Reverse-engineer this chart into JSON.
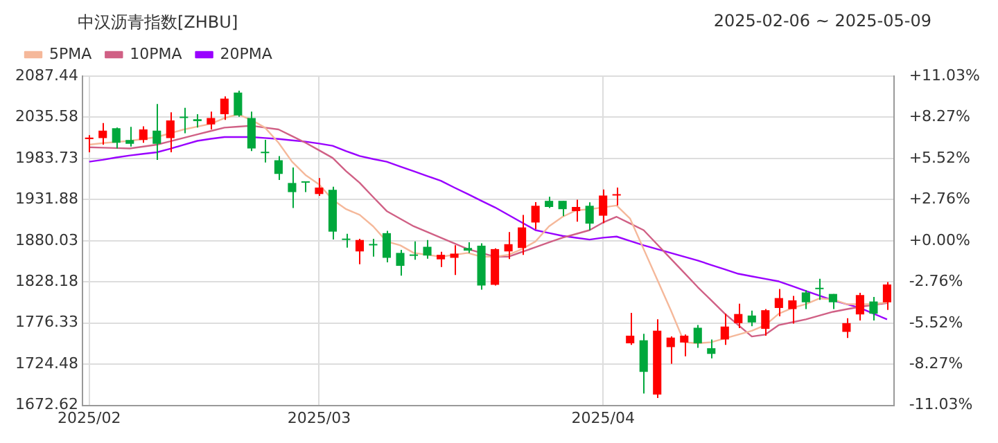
{
  "chart_data": {
    "type": "candlestick",
    "title": "中汉沥青指数[ZHBU]",
    "subtitle": "2025-02-06 ~ 2025-05-09",
    "categories": [
      "2025/02",
      null,
      null,
      null,
      null,
      null,
      null,
      null,
      null,
      null,
      null,
      null,
      null,
      null,
      null,
      null,
      null,
      "2025/03",
      null,
      null,
      null,
      null,
      null,
      null,
      null,
      null,
      null,
      null,
      null,
      null,
      null,
      null,
      null,
      null,
      null,
      null,
      null,
      null,
      "2025/04",
      null,
      null,
      null,
      null,
      null,
      null,
      null,
      null,
      null,
      null,
      null,
      null,
      null,
      null,
      null,
      null,
      null,
      null,
      null,
      null,
      null
    ],
    "ohlc": [
      [
        2008,
        2013.1,
        1991.5,
        2010
      ],
      [
        2009.3,
        2028.4,
        2001.1,
        2018.8
      ],
      [
        2021.7,
        2022.6,
        1996.3,
        2003.5
      ],
      [
        2006.9,
        2023.6,
        1998.7,
        2002.1
      ],
      [
        2006.9,
        2024.1,
        2003.5,
        2020.3
      ],
      [
        2018.8,
        2052.3,
        1982,
        2002.1
      ],
      [
        2009.3,
        2041.8,
        1991.5,
        2031.7
      ],
      [
        2035.6,
        2047.5,
        2015.5,
        2034.6
      ],
      [
        2033.2,
        2039.4,
        2022.6,
        2030.8
      ],
      [
        2026.5,
        2042.8,
        2020.3,
        2034.6
      ],
      [
        2039.4,
        2061.9,
        2032.2,
        2059
      ],
      [
        2066.7,
        2069.1,
        2036.1,
        2037.9
      ],
      [
        2034.6,
        2042.8,
        1993,
        1996.3
      ],
      [
        1991.5,
        2007.3,
        1978.6,
        1990.5
      ],
      [
        1981.5,
        1986.8,
        1956.6,
        1964.3
      ],
      [
        1952.8,
        1972.4,
        1921.2,
        1941.3
      ],
      [
        1953.7,
        1954.2,
        1941.3,
        1953.2
      ],
      [
        1938.9,
        1959,
        1936.5,
        1947
      ],
      [
        1944.2,
        1948,
        1881.5,
        1891.5
      ],
      [
        1881.5,
        1888.7,
        1871.4,
        1881
      ],
      [
        1866.6,
        1882.4,
        1850.4,
        1881
      ],
      [
        1874.5,
        1882.4,
        1860,
        1874.2
      ],
      [
        1889.6,
        1892.5,
        1852.8,
        1858.5
      ],
      [
        1864.7,
        1868.5,
        1836,
        1848.4
      ],
      [
        1861.5,
        1879.1,
        1856.1,
        1861
      ],
      [
        1872.4,
        1881,
        1857.5,
        1861.4
      ],
      [
        1856.6,
        1866.1,
        1847,
        1862.3
      ],
      [
        1858.5,
        1874.3,
        1837,
        1863.8
      ],
      [
        1870.9,
        1878.1,
        1864.7,
        1867.6
      ],
      [
        1873.8,
        1876.7,
        1818.3,
        1823.6
      ],
      [
        1824.5,
        1870.5,
        1823.6,
        1869.5
      ],
      [
        1866.6,
        1891,
        1857,
        1875.7
      ],
      [
        1870.9,
        1912.6,
        1862.3,
        1896.8
      ],
      [
        1903,
        1928.8,
        1894.4,
        1924.1
      ],
      [
        1930.3,
        1935.5,
        1921.2,
        1922.6
      ],
      [
        1930.3,
        1930.3,
        1911.1,
        1919.8
      ],
      [
        1917.4,
        1931.7,
        1904,
        1922.6
      ],
      [
        1924.1,
        1928.4,
        1893.4,
        1901.6
      ],
      [
        1911.6,
        1944.6,
        1902,
        1937
      ],
      [
        1937,
        1947,
        1924.5,
        1938.5
      ],
      [
        1750.8,
        1789.1,
        1748.9,
        1760.4
      ],
      [
        1754.6,
        1762.8,
        1687.6,
        1714.9
      ],
      [
        1686.2,
        1781,
        1681.9,
        1766.6
      ],
      [
        1746,
        1759.4,
        1725,
        1758
      ],
      [
        1751.8,
        1761.8,
        1734.5,
        1760.4
      ],
      [
        1770.4,
        1773.8,
        1745.1,
        1750.8
      ],
      [
        1744.6,
        1755.6,
        1731.7,
        1737.4
      ],
      [
        1755.6,
        1788.1,
        1748.9,
        1771.9
      ],
      [
        1776.2,
        1800.6,
        1769.9,
        1787.7
      ],
      [
        1785.8,
        1792,
        1772.3,
        1777.1
      ],
      [
        1769,
        1793.9,
        1760.4,
        1792.5
      ],
      [
        1795.3,
        1819.3,
        1784.8,
        1807.8
      ],
      [
        1793.9,
        1810.6,
        1775.7,
        1804.9
      ],
      [
        1814.9,
        1817.8,
        1793.9,
        1802.5
      ],
      [
        1819.5,
        1832.2,
        1805.4,
        1819
      ],
      [
        1813,
        1813,
        1793.9,
        1802.5
      ],
      [
        1765.2,
        1782.4,
        1757.5,
        1776.2
      ],
      [
        1787.2,
        1814.5,
        1779.5,
        1811.6
      ],
      [
        1803.5,
        1809.2,
        1779.5,
        1788.1
      ],
      [
        1802.5,
        1827.9,
        1792.9,
        1825
      ]
    ],
    "colors": [
      "#ff0000",
      "#ff0000",
      "#00a83c",
      "#00a83c",
      "#ff0000",
      "#00a83c",
      "#ff0000",
      "#00a83c",
      "#00a83c",
      "#ff0000",
      "#ff0000",
      "#00a83c",
      "#00a83c",
      "#00a83c",
      "#00a83c",
      "#00a83c",
      "#00a83c",
      "#ff0000",
      "#00a83c",
      "#00a83c",
      "#ff0000",
      "#00a83c",
      "#00a83c",
      "#00a83c",
      "#00a83c",
      "#00a83c",
      "#ff0000",
      "#ff0000",
      "#00a83c",
      "#00a83c",
      "#ff0000",
      "#ff0000",
      "#ff0000",
      "#ff0000",
      "#00a83c",
      "#00a83c",
      "#ff0000",
      "#00a83c",
      "#ff0000",
      "#ff0000",
      "#ff0000",
      "#00a83c",
      "#ff0000",
      "#ff0000",
      "#ff0000",
      "#00a83c",
      "#00a83c",
      "#ff0000",
      "#ff0000",
      "#00a83c",
      "#ff0000",
      "#ff0000",
      "#ff0000",
      "#00a83c",
      "#00a83c",
      "#00a83c",
      "#ff0000",
      "#ff0000",
      "#00a83c",
      "#ff0000"
    ],
    "series": [
      {
        "name": "5PMA",
        "type": "line",
        "color": "#f5b89a",
        "values": [
          2001.1,
          2003,
          2004.5,
          2005.9,
          2008.3,
          2010.7,
          2015.5,
          2020.3,
          2023.9,
          2027.4,
          2034.6,
          2039.4,
          2032.2,
          2022.6,
          2003.5,
          1979.6,
          1962.8,
          1950.9,
          1931.7,
          1919.8,
          1912.6,
          1898.2,
          1879.1,
          1874.3,
          1864.7,
          1862.3,
          1859.9,
          1862.3,
          1864.7,
          1859.9,
          1859.9,
          1862.3,
          1869.5,
          1879.1,
          1898.2,
          1910.2,
          1918.3,
          1919.8,
          1922.1,
          1924.5,
          1907.8,
          1869.5,
          1831.2,
          1792.9,
          1752.2,
          1750.8,
          1752.2,
          1757,
          1761.8,
          1766.6,
          1773.8,
          1788.1,
          1795.3,
          1800.1,
          1807.3,
          1806.3,
          1800.1,
          1800.1,
          1800.1,
          1802.5
        ]
      },
      {
        "name": "10PMA",
        "type": "line",
        "color": "#d06085",
        "values": [
          1997.8,
          1997.3,
          1996.8,
          1996.3,
          1998.7,
          2001.1,
          2005.4,
          2009.7,
          2014,
          2018.3,
          2022.6,
          2023.8,
          2025,
          2022.6,
          2020.3,
          2011.9,
          2003.5,
          1994,
          1984.4,
          1967.7,
          1953,
          1935,
          1917.4,
          1907.8,
          1898.2,
          1891,
          1883.9,
          1876.7,
          1869.5,
          1864.7,
          1859.9,
          1859.9,
          1865.9,
          1871.9,
          1877.9,
          1883.9,
          1888.6,
          1893.4,
          1903,
          1910.2,
          1901.8,
          1893.4,
          1875.5,
          1857.5,
          1839.6,
          1821.6,
          1804.9,
          1788.1,
          1773.8,
          1759.4,
          1761.8,
          1773.8,
          1777.4,
          1781,
          1785.8,
          1790.5,
          1793.7,
          1796.8,
          1799.2,
          1801.5
        ]
      },
      {
        "name": "20PMA",
        "type": "line",
        "color": "#9900ff",
        "values": [
          1979.6,
          1982,
          1985,
          1987.5,
          1989.5,
          1991.5,
          1996,
          2001,
          2005.9,
          2008.5,
          2010.7,
          2010.7,
          2010.7,
          2009.5,
          2008.3,
          2006.5,
          2004.9,
          2002.5,
          1999.7,
          1993,
          1986.8,
          1983,
          1979.6,
          1973.6,
          1967.6,
          1961.6,
          1955.6,
          1947,
          1938.8,
          1930.4,
          1922.1,
          1912.5,
          1903,
          1893.4,
          1889.8,
          1886.2,
          1883.8,
          1881.5,
          1883.9,
          1885.3,
          1879.8,
          1874.3,
          1869.5,
          1864.7,
          1859.9,
          1855.1,
          1849.5,
          1844,
          1838.4,
          1835.2,
          1832,
          1828.8,
          1822.8,
          1816.8,
          1810.8,
          1804.9,
          1800.1,
          1795.3,
          1788.1,
          1781
        ]
      }
    ],
    "ylim": [
      1672.62,
      2087.44
    ],
    "yticks": [
      1672.62,
      1724.48,
      1776.33,
      1828.18,
      1880.03,
      1931.88,
      1983.73,
      2035.58,
      2087.44
    ],
    "y2lim": [
      -11.03,
      11.03
    ],
    "y2ticks": [
      {
        "value": -11.03,
        "label": "-11.03%"
      },
      {
        "value": -8.27,
        "label": "-8.27%"
      },
      {
        "value": -5.52,
        "label": "-5.52%"
      },
      {
        "value": -2.76,
        "label": "-2.76%"
      },
      {
        "value": 0,
        "label": "+0.00%"
      },
      {
        "value": 2.76,
        "label": "+2.76%"
      },
      {
        "value": 5.52,
        "label": "+5.52%"
      },
      {
        "value": 8.27,
        "label": "+8.27%"
      },
      {
        "value": 11.03,
        "label": "+11.03%"
      }
    ],
    "grid": true,
    "legend": "top left",
    "marker": "none"
  }
}
